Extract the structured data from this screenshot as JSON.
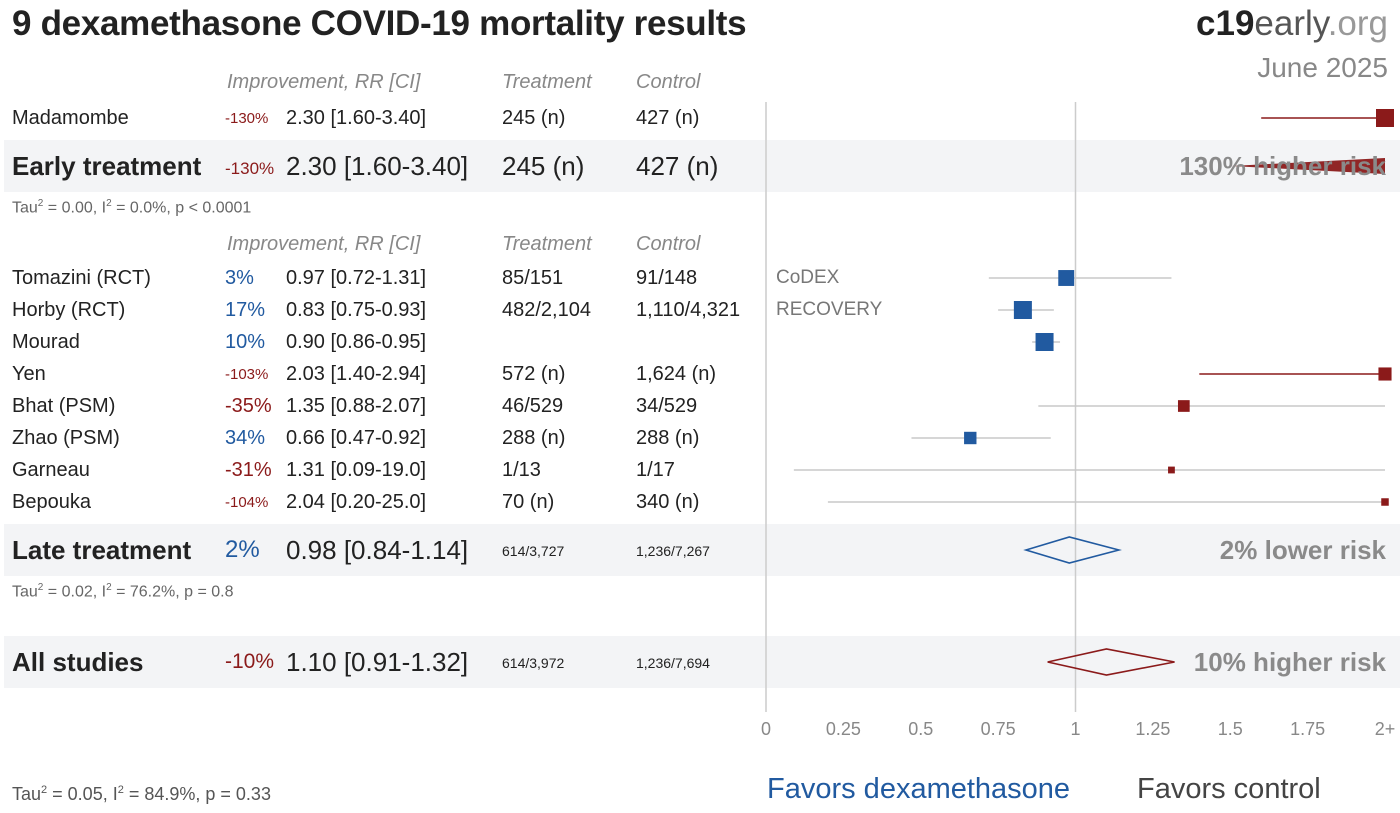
{
  "title": "9 dexamethasone COVID-19 mortality results",
  "brand": {
    "part1": "c19",
    "part2": "early",
    "part3": ".org"
  },
  "date": "June 2025",
  "headers": {
    "improvement": "Improvement, RR [CI]",
    "treatment": "Treatment",
    "control": "Control"
  },
  "early": {
    "studies": [
      {
        "name": "Madamombe",
        "pct": "-130%",
        "rr": "2.30 [1.60-3.40]",
        "treatment": "245 (n)",
        "control": "427 (n)",
        "trial": ""
      }
    ],
    "summary": {
      "label": "Early treatment",
      "pct": "-130%",
      "rr": "2.30 [1.60-3.40]",
      "treatment": "245 (n)",
      "control": "427 (n)",
      "risk": "130% higher risk"
    },
    "stats": {
      "tau_prefix": "Tau",
      "tau_suffix": " = 0.00, I",
      "i_suffix": " = 0.0%, p < 0.0001",
      "sup": "2"
    }
  },
  "late": {
    "studies": [
      {
        "name": "Tomazini (RCT)",
        "pct": "3%",
        "rr": "0.97 [0.72-1.31]",
        "treatment": "85/151",
        "control": "91/148",
        "trial": "CoDEX"
      },
      {
        "name": "Horby (RCT)",
        "pct": "17%",
        "rr": "0.83 [0.75-0.93]",
        "treatment": "482/2,104",
        "control": "1,110/4,321",
        "trial": "RECOVERY"
      },
      {
        "name": "Mourad",
        "pct": "10%",
        "rr": "0.90 [0.86-0.95]",
        "treatment": "",
        "control": "",
        "trial": ""
      },
      {
        "name": "Yen",
        "pct": "-103%",
        "rr": "2.03 [1.40-2.94]",
        "treatment": "572 (n)",
        "control": "1,624 (n)",
        "trial": ""
      },
      {
        "name": "Bhat (PSM)",
        "pct": "-35%",
        "rr": "1.35 [0.88-2.07]",
        "treatment": "46/529",
        "control": "34/529",
        "trial": ""
      },
      {
        "name": "Zhao (PSM)",
        "pct": "34%",
        "rr": "0.66 [0.47-0.92]",
        "treatment": "288 (n)",
        "control": "288 (n)",
        "trial": ""
      },
      {
        "name": "Garneau",
        "pct": "-31%",
        "rr": "1.31 [0.09-19.0]",
        "treatment": "1/13",
        "control": "1/17",
        "trial": ""
      },
      {
        "name": "Bepouka",
        "pct": "-104%",
        "rr": "2.04 [0.20-25.0]",
        "treatment": "70 (n)",
        "control": "340 (n)",
        "trial": ""
      }
    ],
    "summary": {
      "label": "Late treatment",
      "pct": "2%",
      "rr": "0.98 [0.84-1.14]",
      "treatment": "614/3,727",
      "control": "1,236/7,267",
      "risk": "2% lower risk"
    },
    "stats": {
      "tau_prefix": "Tau",
      "tau_suffix": " = 0.02, I",
      "i_suffix": " = 76.2%, p = 0.8",
      "sup": "2"
    }
  },
  "all": {
    "summary": {
      "label": "All studies",
      "pct": "-10%",
      "rr": "1.10 [0.91-1.32]",
      "treatment": "614/3,972",
      "control": "1,236/7,694",
      "risk": "10% higher risk"
    },
    "stats": {
      "tau_prefix": "Tau",
      "tau_suffix": " = 0.05, I",
      "i_suffix": " = 84.9%, p = 0.33",
      "sup": "2"
    }
  },
  "favors": {
    "left": "Favors dexamethasone",
    "right": "Favors control"
  },
  "colors": {
    "harm": "#8b1a1a",
    "benefit": "#215aa0",
    "ci": "#c8c8c8",
    "band": "#f3f4f6"
  },
  "chart_data": {
    "type": "forest",
    "xlim": [
      0,
      2
    ],
    "x_ticks": [
      "0",
      "0.25",
      "0.5",
      "0.75",
      "1",
      "1.25",
      "1.5",
      "1.75",
      "2+"
    ],
    "x_tick_values": [
      0,
      0.25,
      0.5,
      0.75,
      1,
      1.25,
      1.5,
      1.75,
      2
    ],
    "reference_line": 1,
    "studies": [
      {
        "name": "Madamombe",
        "group": "early",
        "rr": 2.3,
        "lo": 1.6,
        "hi": 3.4,
        "weight": 1.0
      },
      {
        "name": "Tomazini (RCT)",
        "group": "late",
        "rr": 0.97,
        "lo": 0.72,
        "hi": 1.31,
        "weight": 0.85
      },
      {
        "name": "Horby (RCT)",
        "group": "late",
        "rr": 0.83,
        "lo": 0.75,
        "hi": 0.93,
        "weight": 1.0
      },
      {
        "name": "Mourad",
        "group": "late",
        "rr": 0.9,
        "lo": 0.86,
        "hi": 0.95,
        "weight": 1.0
      },
      {
        "name": "Yen",
        "group": "late",
        "rr": 2.03,
        "lo": 1.4,
        "hi": 2.94,
        "weight": 0.65
      },
      {
        "name": "Bhat (PSM)",
        "group": "late",
        "rr": 1.35,
        "lo": 0.88,
        "hi": 2.07,
        "weight": 0.55
      },
      {
        "name": "Zhao (PSM)",
        "group": "late",
        "rr": 0.66,
        "lo": 0.47,
        "hi": 0.92,
        "weight": 0.6
      },
      {
        "name": "Garneau",
        "group": "late",
        "rr": 1.31,
        "lo": 0.09,
        "hi": 19.0,
        "weight": 0.2
      },
      {
        "name": "Bepouka",
        "group": "late",
        "rr": 2.04,
        "lo": 0.2,
        "hi": 25.0,
        "weight": 0.25
      }
    ],
    "summaries": [
      {
        "name": "Early treatment",
        "rr": 2.3,
        "lo": 1.6,
        "hi": 3.4
      },
      {
        "name": "Late treatment",
        "rr": 0.98,
        "lo": 0.84,
        "hi": 1.14
      },
      {
        "name": "All studies",
        "rr": 1.1,
        "lo": 0.91,
        "hi": 1.32
      }
    ]
  }
}
